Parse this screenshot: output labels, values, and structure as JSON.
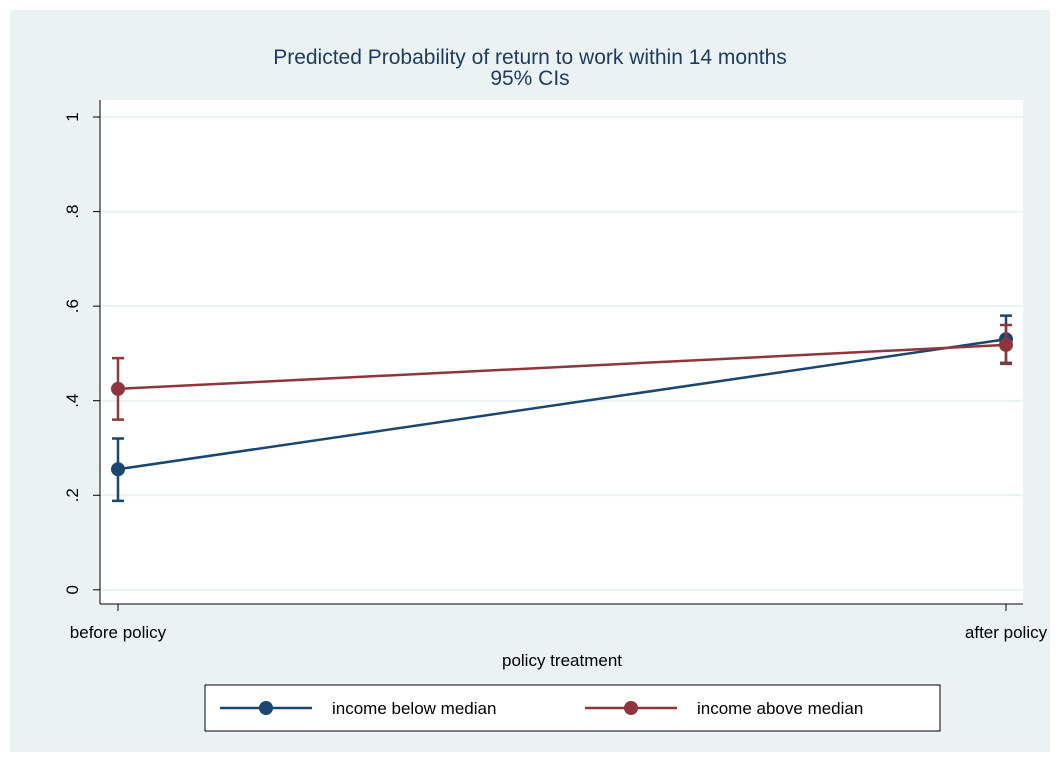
{
  "chart_data": {
    "type": "line",
    "title": "Predicted Probability of return to work within 14 months",
    "subtitle": "95% CIs",
    "x_label": "policy treatment",
    "categories": [
      "before policy",
      "after policy"
    ],
    "series": [
      {
        "name": "income below median",
        "color": "#1a476f",
        "values": [
          0.255,
          0.53
        ],
        "lower": [
          0.188,
          0.48
        ],
        "upper": [
          0.32,
          0.58
        ]
      },
      {
        "name": "income above median",
        "color": "#90353b",
        "values": [
          0.425,
          0.518
        ],
        "lower": [
          0.36,
          0.478
        ],
        "upper": [
          0.49,
          0.56
        ]
      }
    ],
    "ylim": [
      -0.03,
      1.036
    ],
    "yticks": [
      0,
      {
        "value": 0.2,
        "label": ".2"
      },
      {
        "value": 0.4,
        "label": ".4"
      },
      {
        "value": 0.6,
        "label": ".6"
      },
      {
        "value": 0.8,
        "label": ".8"
      },
      1
    ],
    "grid": true
  }
}
